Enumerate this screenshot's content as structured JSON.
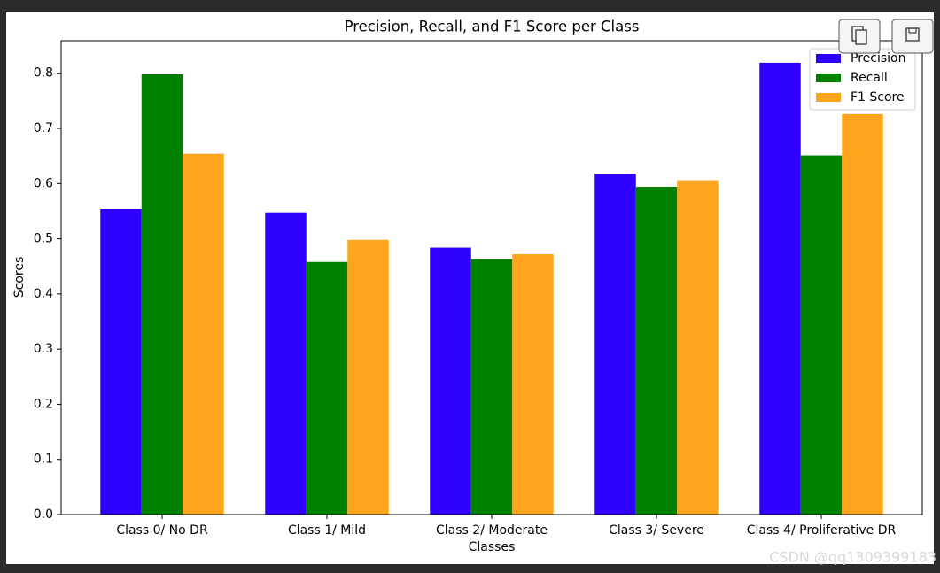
{
  "chart_data": {
    "type": "bar",
    "title": "Precision, Recall, and F1 Score per Class",
    "x_label": "Classes",
    "y_label": "Scores",
    "categories": [
      "Class 0/ No DR",
      "Class 1/ Mild",
      "Class 2/ Moderate",
      "Class 3/ Severe",
      "Class 4/ Proliferative DR"
    ],
    "series": [
      {
        "name": "Precision",
        "color": "#2f00ff",
        "values": [
          0.554,
          0.548,
          0.484,
          0.618,
          0.819
        ]
      },
      {
        "name": "Recall",
        "color": "#008000",
        "values": [
          0.798,
          0.458,
          0.463,
          0.594,
          0.651
        ]
      },
      {
        "name": "F1 Score",
        "color": "#ffa51d",
        "values": [
          0.654,
          0.498,
          0.472,
          0.606,
          0.726
        ]
      }
    ],
    "ylim": [
      0,
      0.859
    ],
    "yticks": [
      {
        "value": 0,
        "label": "0.0"
      },
      0.1,
      0.2,
      0.3,
      0.4,
      0.5,
      0.6,
      0.7,
      0.8
    ],
    "legend": "upper right"
  },
  "watermark": "CSDN @qq1309399183"
}
